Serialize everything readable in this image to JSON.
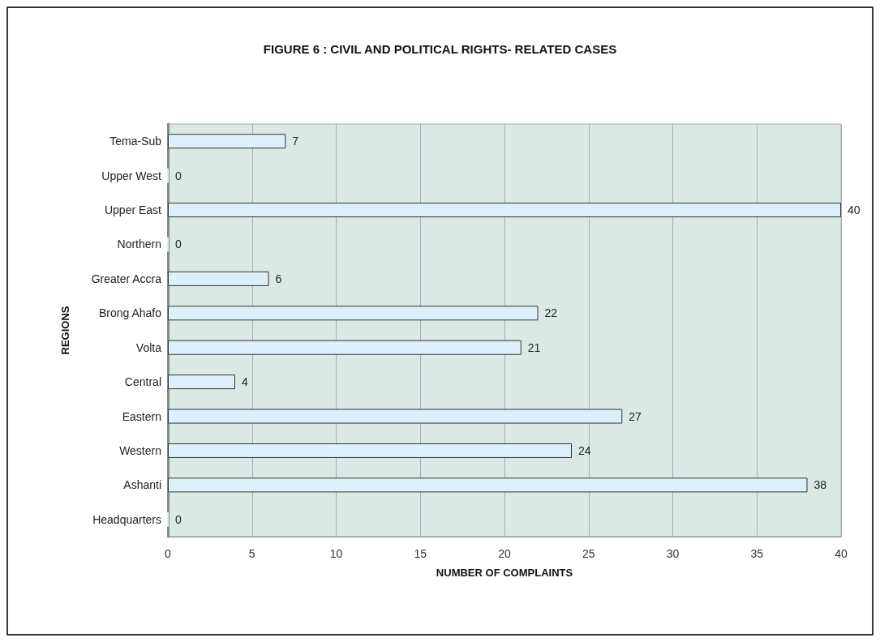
{
  "chart_data": {
    "type": "bar",
    "orientation": "horizontal",
    "title": "FIGURE 6 : CIVIL AND POLITICAL RIGHTS- RELATED CASES",
    "xlabel": "NUMBER OF COMPLAINTS",
    "ylabel": "REGIONS",
    "categories": [
      "Tema-Sub",
      "Upper West",
      "Upper East",
      "Northern",
      "Greater Accra",
      "Brong Ahafo",
      "Volta",
      "Central",
      "Eastern",
      "Western",
      "Ashanti",
      "Headquarters"
    ],
    "values": [
      7,
      0,
      40,
      0,
      6,
      22,
      21,
      4,
      27,
      24,
      38,
      0
    ],
    "color": "#dcf0fa",
    "xlim": [
      0,
      40
    ],
    "xticks": [
      0,
      5,
      10,
      15,
      20,
      25,
      30,
      35,
      40
    ],
    "grid": "x",
    "data_labels": true
  }
}
